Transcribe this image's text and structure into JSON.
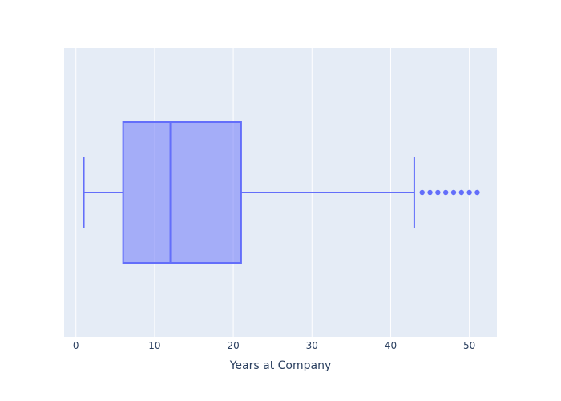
{
  "chart_data": {
    "type": "box",
    "orientation": "horizontal",
    "title": "",
    "xlabel": "Years at Company",
    "ylabel": "",
    "xlim": [
      -1.5,
      53.5
    ],
    "x_ticks": [
      0,
      10,
      20,
      30,
      40,
      50
    ],
    "grid": true,
    "legend": "none",
    "colors": {
      "plot_background": "#E5ECF6",
      "grid": "#ffffff",
      "box_line": "#636EFA",
      "box_fill": "rgba(99,110,250,0.5)",
      "text": "#2a3f5f"
    },
    "series": [
      {
        "lower_whisker": 1,
        "q1": 6,
        "median": 12,
        "q3": 21,
        "upper_whisker": 43,
        "outliers": [
          44,
          45,
          46,
          47,
          48,
          49,
          50,
          51
        ]
      }
    ]
  }
}
